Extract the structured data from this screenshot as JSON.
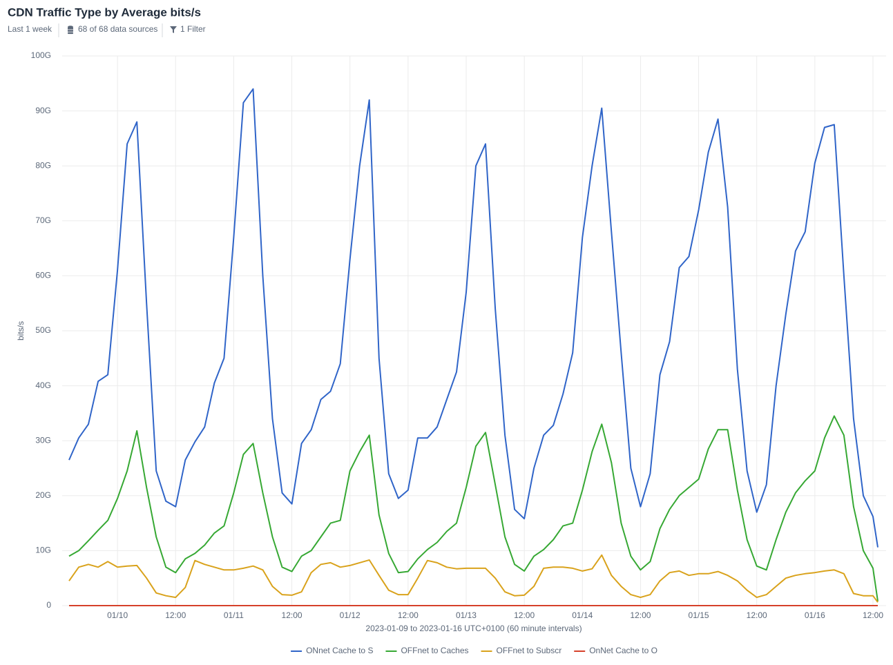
{
  "header": {
    "title": "CDN Traffic Type by Average bits/s",
    "range": "Last 1 week",
    "sources": "68 of 68 data sources",
    "filter": "1 Filter"
  },
  "chart_data": {
    "type": "line",
    "x_label": "2023-01-09 to 2023-01-16 UTC+0100 (60 minute intervals)",
    "y_label": "bits/s",
    "x": [
      "2023-01-09 14:00",
      "2023-01-09 16:00",
      "2023-01-09 18:00",
      "2023-01-09 20:00",
      "2023-01-09 22:00",
      "2023-01-10 00:00",
      "2023-01-10 02:00",
      "2023-01-10 04:00",
      "2023-01-10 06:00",
      "2023-01-10 08:00",
      "2023-01-10 10:00",
      "2023-01-10 12:00",
      "2023-01-10 14:00",
      "2023-01-10 16:00",
      "2023-01-10 18:00",
      "2023-01-10 20:00",
      "2023-01-10 22:00",
      "2023-01-11 00:00",
      "2023-01-11 02:00",
      "2023-01-11 04:00",
      "2023-01-11 06:00",
      "2023-01-11 08:00",
      "2023-01-11 10:00",
      "2023-01-11 12:00",
      "2023-01-11 14:00",
      "2023-01-11 16:00",
      "2023-01-11 18:00",
      "2023-01-11 20:00",
      "2023-01-11 22:00",
      "2023-01-12 00:00",
      "2023-01-12 02:00",
      "2023-01-12 04:00",
      "2023-01-12 06:00",
      "2023-01-12 08:00",
      "2023-01-12 10:00",
      "2023-01-12 12:00",
      "2023-01-12 14:00",
      "2023-01-12 16:00",
      "2023-01-12 18:00",
      "2023-01-12 20:00",
      "2023-01-12 22:00",
      "2023-01-13 00:00",
      "2023-01-13 02:00",
      "2023-01-13 04:00",
      "2023-01-13 06:00",
      "2023-01-13 08:00",
      "2023-01-13 10:00",
      "2023-01-13 12:00",
      "2023-01-13 14:00",
      "2023-01-13 16:00",
      "2023-01-13 18:00",
      "2023-01-13 20:00",
      "2023-01-13 22:00",
      "2023-01-14 00:00",
      "2023-01-14 02:00",
      "2023-01-14 04:00",
      "2023-01-14 06:00",
      "2023-01-14 08:00",
      "2023-01-14 10:00",
      "2023-01-14 12:00",
      "2023-01-14 14:00",
      "2023-01-14 16:00",
      "2023-01-14 18:00",
      "2023-01-14 20:00",
      "2023-01-14 22:00",
      "2023-01-15 00:00",
      "2023-01-15 02:00",
      "2023-01-15 04:00",
      "2023-01-15 06:00",
      "2023-01-15 08:00",
      "2023-01-15 10:00",
      "2023-01-15 12:00",
      "2023-01-15 14:00",
      "2023-01-15 16:00",
      "2023-01-15 18:00",
      "2023-01-15 20:00",
      "2023-01-15 22:00",
      "2023-01-16 00:00",
      "2023-01-16 02:00",
      "2023-01-16 04:00",
      "2023-01-16 06:00",
      "2023-01-16 08:00",
      "2023-01-16 10:00",
      "2023-01-16 12:00",
      "2023-01-16 13:00"
    ],
    "series": [
      {
        "name": "ONnet Cache to S",
        "color": "#2f64c8",
        "values": [
          26.5,
          30.5,
          33,
          40.8,
          42,
          61,
          84,
          88,
          55,
          24.5,
          19,
          18,
          26.5,
          29.8,
          32.5,
          40.5,
          45,
          67,
          91.5,
          94,
          60,
          34,
          20.5,
          18.5,
          29.5,
          32,
          37.5,
          39,
          44,
          63,
          80,
          92,
          45,
          24,
          19.5,
          21,
          30.5,
          30.5,
          32.5,
          37.5,
          42.5,
          57,
          80,
          84,
          54,
          31,
          17.5,
          15.8,
          25,
          31,
          32.8,
          38.5,
          46,
          67,
          80,
          90.5,
          68,
          46,
          25,
          18,
          24,
          42,
          48,
          61.5,
          63.5,
          72,
          82.5,
          88.5,
          72.5,
          43,
          24.5,
          17,
          22,
          40,
          53,
          64.5,
          68,
          80.5,
          87,
          87.5,
          60,
          34,
          20,
          16.2,
          10.6
        ]
      },
      {
        "name": "OFFnet to Caches",
        "color": "#36a833",
        "values": [
          9,
          10,
          11.8,
          13.7,
          15.5,
          19.5,
          24.5,
          31.8,
          21.5,
          12.5,
          7,
          6,
          8.5,
          9.5,
          11,
          13.2,
          14.5,
          20.5,
          27.5,
          29.5,
          20.5,
          12.5,
          7,
          6.2,
          9,
          10,
          12.5,
          15,
          15.5,
          24.5,
          28,
          31,
          16.5,
          9.5,
          6,
          6.2,
          8.5,
          10.2,
          11.5,
          13.5,
          15,
          21.5,
          29,
          31.5,
          22,
          12.5,
          7.5,
          6.3,
          9,
          10.2,
          12,
          14.5,
          15,
          21,
          28,
          33,
          26,
          15,
          9,
          6.5,
          8,
          14,
          17.5,
          20,
          21.5,
          23,
          28.5,
          32,
          32,
          21,
          12,
          7.2,
          6.5,
          12,
          17,
          20.5,
          22.7,
          24.5,
          30.5,
          34.5,
          31,
          18,
          10,
          6.8,
          0.8
        ]
      },
      {
        "name": "OFFnet to Subscr",
        "color": "#d9a21b",
        "values": [
          4.5,
          7,
          7.5,
          7,
          8,
          7,
          7.2,
          7.3,
          5,
          2.3,
          1.8,
          1.5,
          3.3,
          8.2,
          7.5,
          7,
          6.5,
          6.5,
          6.8,
          7.2,
          6.5,
          3.5,
          2,
          1.9,
          2.5,
          6,
          7.5,
          7.8,
          7,
          7.3,
          7.8,
          8.3,
          5.5,
          2.8,
          2,
          2,
          5,
          8.2,
          7.8,
          7,
          6.7,
          6.8,
          6.8,
          6.8,
          5,
          2.5,
          1.8,
          1.9,
          3.5,
          6.8,
          7,
          7,
          6.8,
          6.3,
          6.7,
          9.2,
          5.5,
          3.5,
          2,
          1.5,
          2,
          4.5,
          6,
          6.3,
          5.5,
          5.8,
          5.8,
          6.2,
          5.5,
          4.5,
          2.8,
          1.5,
          2,
          3.5,
          5,
          5.5,
          5.8,
          6,
          6.3,
          6.5,
          5.8,
          2.2,
          1.8,
          1.8,
          0.6
        ]
      },
      {
        "name": "OnNet Cache to O",
        "color": "#d6402a",
        "values": [
          0,
          0,
          0,
          0,
          0,
          0,
          0,
          0,
          0,
          0,
          0,
          0,
          0,
          0,
          0,
          0,
          0,
          0,
          0,
          0,
          0,
          0,
          0,
          0,
          0,
          0,
          0,
          0,
          0,
          0,
          0,
          0,
          0,
          0,
          0,
          0,
          0,
          0,
          0,
          0,
          0,
          0,
          0,
          0,
          0,
          0,
          0,
          0,
          0,
          0,
          0,
          0,
          0,
          0,
          0,
          0,
          0,
          0,
          0,
          0,
          0,
          0,
          0,
          0,
          0,
          0,
          0,
          0,
          0,
          0,
          0,
          0,
          0,
          0,
          0,
          0,
          0,
          0,
          0,
          0,
          0,
          0,
          0,
          0,
          0
        ]
      }
    ],
    "xlim": [
      "2023-01-09 14:00",
      "2023-01-16 13:00"
    ],
    "xticks": [
      {
        "value": "2023-01-10 00:00",
        "label": "01/10"
      },
      {
        "value": "2023-01-10 12:00",
        "label": "12:00"
      },
      {
        "value": "2023-01-11 00:00",
        "label": "01/11"
      },
      {
        "value": "2023-01-11 12:00",
        "label": "12:00"
      },
      {
        "value": "2023-01-12 00:00",
        "label": "01/12"
      },
      {
        "value": "2023-01-12 12:00",
        "label": "12:00"
      },
      {
        "value": "2023-01-13 00:00",
        "label": "01/13"
      },
      {
        "value": "2023-01-13 12:00",
        "label": "12:00"
      },
      {
        "value": "2023-01-14 00:00",
        "label": "01/14"
      },
      {
        "value": "2023-01-14 12:00",
        "label": "12:00"
      },
      {
        "value": "2023-01-15 00:00",
        "label": "01/15"
      },
      {
        "value": "2023-01-15 12:00",
        "label": "12:00"
      },
      {
        "value": "2023-01-16 00:00",
        "label": "01/16"
      },
      {
        "value": "2023-01-16 12:00",
        "label": "12:00"
      }
    ],
    "ylim": [
      0,
      100
    ],
    "yticks": [
      0,
      {
        "value": 10,
        "label": "10G"
      },
      {
        "value": 20,
        "label": "20G"
      },
      {
        "value": 30,
        "label": "30G"
      },
      {
        "value": 40,
        "label": "40G"
      },
      {
        "value": 50,
        "label": "50G"
      },
      {
        "value": 60,
        "label": "60G"
      },
      {
        "value": 70,
        "label": "70G"
      },
      {
        "value": 80,
        "label": "80G"
      },
      {
        "value": 90,
        "label": "90G"
      },
      {
        "value": 100,
        "label": "100G"
      }
    ],
    "grid": true
  }
}
